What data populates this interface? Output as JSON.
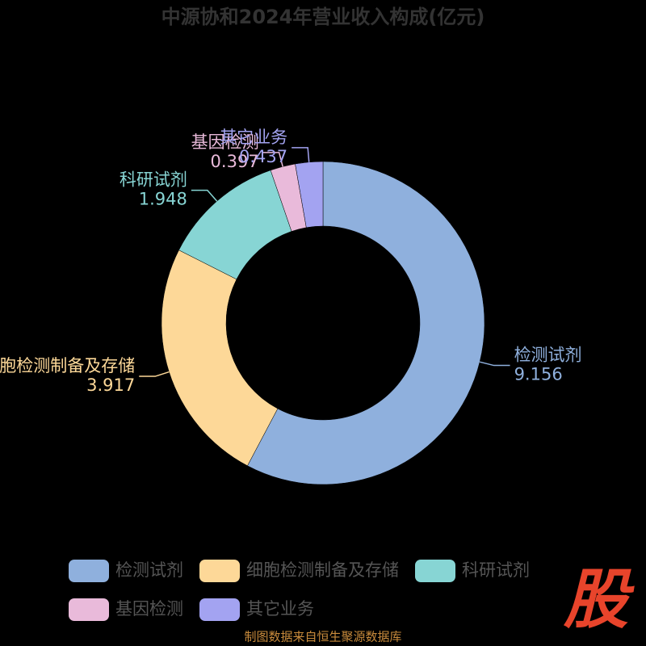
{
  "chart_data": {
    "type": "pie",
    "title": "中源协和2024年营业收入构成(亿元)",
    "categories": [
      "检测试剂",
      "细胞检测制备及存储",
      "科研试剂",
      "基因检测",
      "其它业务"
    ],
    "values": [
      9.156,
      3.917,
      1.948,
      0.397,
      0.437
    ],
    "colors": [
      "#8fb0dd",
      "#fdd898",
      "#87d5d4",
      "#e9bada",
      "#a3a3f1"
    ],
    "legend": "bottom",
    "source": "制图数据来自恒生聚源数据库",
    "watermark": "股"
  }
}
